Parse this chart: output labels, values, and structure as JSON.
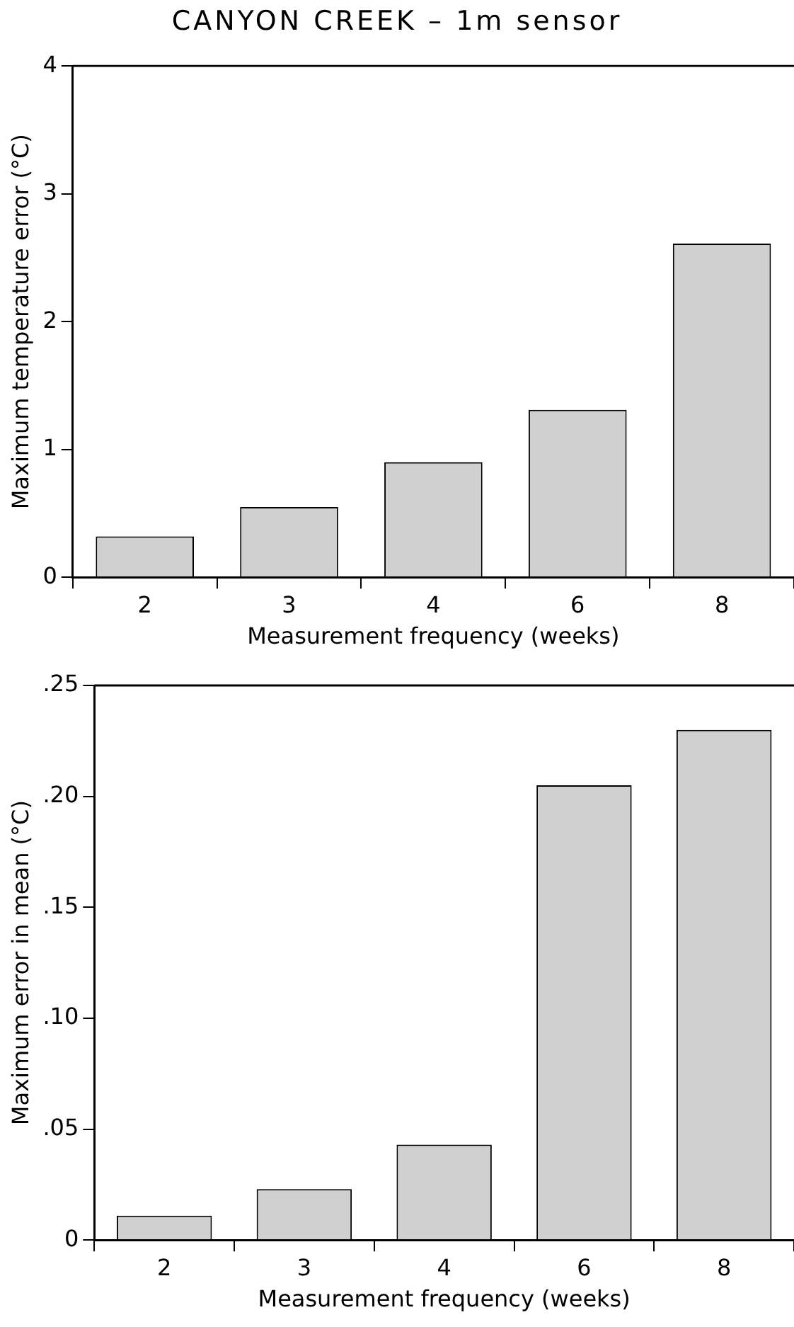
{
  "chart_data": [
    {
      "type": "bar",
      "title": "CANYON CREEK – 1m sensor",
      "xlabel": "Measurement frequency (weeks)",
      "ylabel": "Maximum temperature error (°C)",
      "categories": [
        "2",
        "3",
        "4",
        "6",
        "8"
      ],
      "values": [
        0.32,
        0.55,
        0.9,
        1.31,
        2.61
      ],
      "color": "#d0d0d0",
      "ylim": [
        0,
        4
      ],
      "yticks": [
        0,
        1,
        2,
        3,
        4
      ],
      "grid": false,
      "legend": false
    },
    {
      "type": "bar",
      "xlabel": "Measurement frequency (weeks)",
      "ylabel": "Maximum error in mean (°C)",
      "categories": [
        "2",
        "3",
        "4",
        "6",
        "8"
      ],
      "values": [
        0.011,
        0.023,
        0.043,
        0.205,
        0.23
      ],
      "color": "#d0d0d0",
      "ylim": [
        0,
        0.25
      ],
      "yticks": [
        {
          "value": 0,
          "label": "0"
        },
        {
          "value": 0.05,
          "label": ".05"
        },
        {
          "value": 0.1,
          "label": ".10"
        },
        {
          "value": 0.15,
          "label": ".15"
        },
        {
          "value": 0.2,
          "label": ".20"
        },
        {
          "value": 0.25,
          "label": ".25"
        }
      ],
      "grid": false,
      "legend": false
    }
  ]
}
